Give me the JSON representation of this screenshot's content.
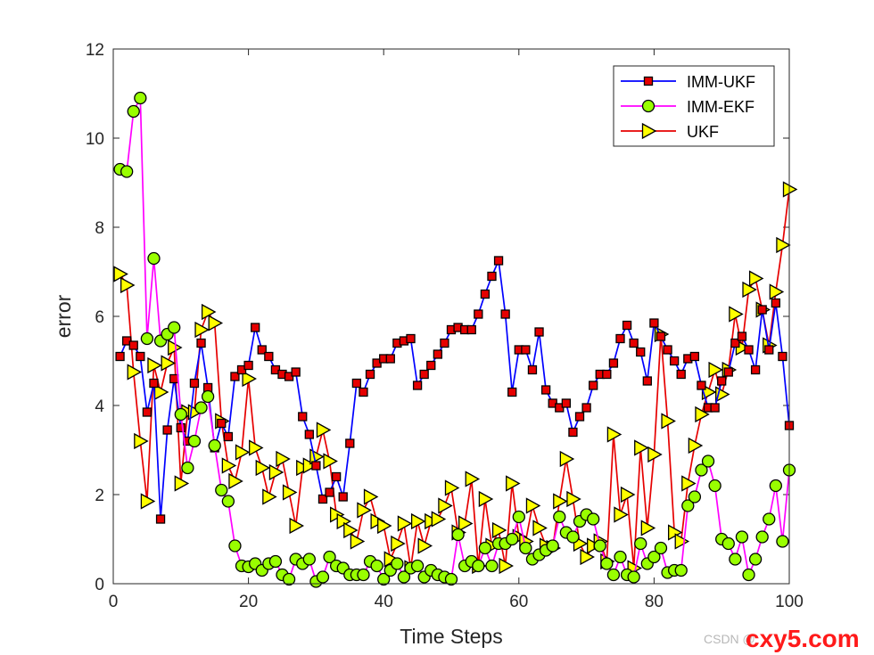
{
  "chart_data": {
    "type": "line",
    "title": "",
    "xlabel": "Time Steps",
    "ylabel": "error",
    "xlim": [
      0,
      100
    ],
    "ylim": [
      0,
      12
    ],
    "xticks": [
      "0",
      "20",
      "40",
      "60",
      "80",
      "100"
    ],
    "yticks": [
      "0",
      "2",
      "4",
      "6",
      "8",
      "10",
      "12"
    ],
    "legend_position": "top-right",
    "series": [
      {
        "name": "IMM-UKF",
        "color": "#0000ff",
        "marker": "square",
        "marker_fill": "#e60000",
        "marker_edge": "#000000",
        "x": [
          1,
          2,
          3,
          4,
          5,
          6,
          7,
          8,
          9,
          10,
          11,
          12,
          13,
          14,
          15,
          16,
          17,
          18,
          19,
          20,
          21,
          22,
          23,
          24,
          25,
          26,
          27,
          28,
          29,
          30,
          31,
          32,
          33,
          34,
          35,
          36,
          37,
          38,
          39,
          40,
          41,
          42,
          43,
          44,
          45,
          46,
          47,
          48,
          49,
          50,
          51,
          52,
          53,
          54,
          55,
          56,
          57,
          58,
          59,
          60,
          61,
          62,
          63,
          64,
          65,
          66,
          67,
          68,
          69,
          70,
          71,
          72,
          73,
          74,
          75,
          76,
          77,
          78,
          79,
          80,
          81,
          82,
          83,
          84,
          85,
          86,
          87,
          88,
          89,
          90,
          91,
          92,
          93,
          94,
          95,
          96,
          97,
          98,
          99,
          100
        ],
        "values": [
          5.1,
          5.45,
          5.35,
          5.1,
          3.85,
          4.5,
          1.45,
          3.45,
          4.6,
          3.5,
          3.2,
          4.5,
          5.4,
          4.4,
          3.05,
          3.6,
          3.3,
          4.65,
          4.8,
          4.9,
          5.75,
          5.25,
          5.1,
          4.8,
          4.7,
          4.65,
          4.75,
          3.75,
          3.35,
          2.65,
          1.9,
          2.05,
          2.4,
          1.95,
          3.15,
          4.5,
          4.3,
          4.7,
          4.95,
          5.05,
          5.05,
          5.4,
          5.45,
          5.5,
          4.45,
          4.7,
          4.9,
          5.15,
          5.4,
          5.7,
          5.75,
          5.7,
          5.7,
          6.05,
          6.5,
          6.9,
          7.25,
          6.05,
          4.3,
          5.25,
          5.25,
          4.8,
          5.65,
          4.35,
          4.05,
          3.95,
          4.05,
          3.4,
          3.75,
          3.95,
          4.45,
          4.7,
          4.7,
          4.95,
          5.5,
          5.8,
          5.4,
          5.2,
          4.55,
          5.85,
          5.55,
          5.25,
          5.0,
          4.7,
          5.05,
          5.1,
          4.45,
          3.95,
          3.95,
          4.55,
          4.75,
          5.4,
          5.55,
          5.25,
          4.8,
          6.15,
          5.25,
          6.3,
          5.1,
          3.55
        ]
      },
      {
        "name": "IMM-EKF",
        "color": "#ff00ff",
        "marker": "circle",
        "marker_fill": "#99ff00",
        "marker_edge": "#000000",
        "x": [
          1,
          2,
          3,
          4,
          5,
          6,
          7,
          8,
          9,
          10,
          11,
          12,
          13,
          14,
          15,
          16,
          17,
          18,
          19,
          20,
          21,
          22,
          23,
          24,
          25,
          26,
          27,
          28,
          29,
          30,
          31,
          32,
          33,
          34,
          35,
          36,
          37,
          38,
          39,
          40,
          41,
          42,
          43,
          44,
          45,
          46,
          47,
          48,
          49,
          50,
          51,
          52,
          53,
          54,
          55,
          56,
          57,
          58,
          59,
          60,
          61,
          62,
          63,
          64,
          65,
          66,
          67,
          68,
          69,
          70,
          71,
          72,
          73,
          74,
          75,
          76,
          77,
          78,
          79,
          80,
          81,
          82,
          83,
          84,
          85,
          86,
          87,
          88,
          89,
          90,
          91,
          92,
          93,
          94,
          95,
          96,
          97,
          98,
          99,
          100
        ],
        "values": [
          9.3,
          9.25,
          10.6,
          10.9,
          5.5,
          7.3,
          5.45,
          5.6,
          5.75,
          3.8,
          2.6,
          3.2,
          3.95,
          4.2,
          3.1,
          2.1,
          1.85,
          0.85,
          0.4,
          0.38,
          0.45,
          0.3,
          0.45,
          0.5,
          0.2,
          0.1,
          0.55,
          0.45,
          0.55,
          0.05,
          0.15,
          0.6,
          0.4,
          0.35,
          0.2,
          0.2,
          0.2,
          0.5,
          0.4,
          0.1,
          0.3,
          0.45,
          0.15,
          0.35,
          0.4,
          0.15,
          0.3,
          0.2,
          0.15,
          0.1,
          1.1,
          0.4,
          0.5,
          0.4,
          0.8,
          0.4,
          0.9,
          0.9,
          1.0,
          1.5,
          0.8,
          0.55,
          0.65,
          0.75,
          0.85,
          1.5,
          1.15,
          1.05,
          1.4,
          1.55,
          1.45,
          0.85,
          0.45,
          0.2,
          0.6,
          0.2,
          0.15,
          0.9,
          0.45,
          0.6,
          0.8,
          0.25,
          0.3,
          0.3,
          1.75,
          1.95,
          2.55,
          2.75,
          2.2,
          1.0,
          0.9,
          0.55,
          1.05,
          0.2,
          0.55,
          1.05,
          1.45,
          2.2,
          0.95,
          2.55
        ]
      },
      {
        "name": "UKF",
        "color": "#e60000",
        "marker": "triangle-right",
        "marker_fill": "#ffff00",
        "marker_edge": "#000000",
        "x": [
          1,
          2,
          3,
          4,
          5,
          6,
          7,
          8,
          9,
          10,
          11,
          12,
          13,
          14,
          15,
          16,
          17,
          18,
          19,
          20,
          21,
          22,
          23,
          24,
          25,
          26,
          27,
          28,
          29,
          30,
          31,
          32,
          33,
          34,
          35,
          36,
          37,
          38,
          39,
          40,
          41,
          42,
          43,
          44,
          45,
          46,
          47,
          48,
          49,
          50,
          51,
          52,
          53,
          54,
          55,
          56,
          57,
          58,
          59,
          60,
          61,
          62,
          63,
          64,
          65,
          66,
          67,
          68,
          69,
          70,
          71,
          72,
          73,
          74,
          75,
          76,
          77,
          78,
          79,
          80,
          81,
          82,
          83,
          84,
          85,
          86,
          87,
          88,
          89,
          90,
          91,
          92,
          93,
          94,
          95,
          96,
          97,
          98,
          99,
          100
        ],
        "values": [
          6.95,
          6.7,
          4.75,
          3.2,
          1.85,
          4.9,
          4.3,
          4.95,
          5.3,
          2.25,
          3.85,
          3.85,
          5.7,
          6.1,
          5.85,
          3.65,
          2.65,
          2.3,
          2.95,
          4.6,
          3.05,
          2.6,
          1.95,
          2.5,
          2.8,
          2.05,
          1.3,
          2.6,
          2.65,
          2.85,
          3.45,
          2.75,
          1.55,
          1.4,
          1.2,
          0.95,
          1.65,
          1.95,
          1.4,
          1.3,
          0.55,
          0.9,
          1.35,
          0.35,
          1.4,
          0.85,
          1.4,
          1.45,
          1.75,
          2.15,
          1.15,
          1.35,
          2.35,
          0.4,
          1.9,
          0.85,
          1.2,
          0.4,
          2.25,
          1.05,
          0.95,
          1.75,
          1.25,
          0.85,
          0.8,
          1.85,
          2.8,
          1.9,
          0.9,
          0.6,
          0.85,
          0.95,
          0.5,
          3.35,
          1.55,
          2.0,
          0.35,
          3.05,
          1.25,
          2.9,
          5.6,
          3.65,
          1.15,
          0.95,
          2.25,
          3.1,
          3.8,
          4.3,
          4.8,
          4.25,
          4.8,
          6.05,
          5.3,
          6.6,
          6.85,
          6.15,
          5.35,
          6.55,
          7.6,
          8.85
        ]
      }
    ]
  },
  "watermark": {
    "csdn_text": "CSDN @",
    "site_text": "cxy5.com"
  }
}
